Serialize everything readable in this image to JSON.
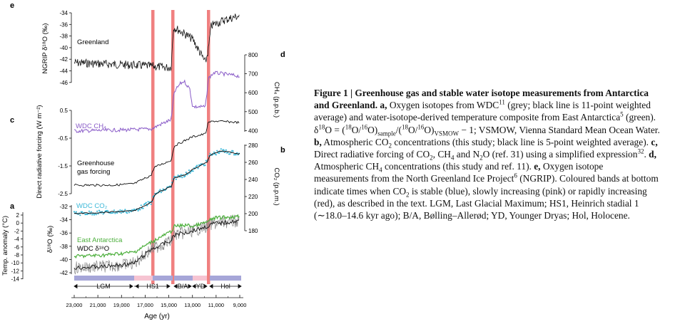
{
  "figure": {
    "panel_letters": {
      "a": "a",
      "b": "b",
      "c": "c",
      "d": "d",
      "e": "e"
    },
    "e_ticks": [
      "-34",
      "-36",
      "-38",
      "-40",
      "-42",
      "-44",
      "-46"
    ],
    "e_axis_label": "NGRIP δ¹⁸O (‰)",
    "greenland_label": "Greenland",
    "d_ticks": [
      "800",
      "700",
      "600",
      "500",
      "400"
    ],
    "d_axis_label": "CH₄ (p.p.b.)",
    "c_ticks": [
      "0.5",
      "-0.5",
      "-1.5",
      "-2.5"
    ],
    "c_axis_label": "Direct radiative forcing (W m⁻²)",
    "wdc_ch4_label": "WDC CH₄",
    "ghg_label_1": "Greenhouse",
    "ghg_label_2": "gas forcing",
    "b_ticks": [
      "280",
      "260",
      "240",
      "220",
      "200",
      "180"
    ],
    "b_axis_label": "CO₂ (p.p.m.)",
    "wdc_co2_label": "WDC CO₂",
    "a_left_ticks": [
      "2",
      "0",
      "-2",
      "-4",
      "-6",
      "-8",
      "-10",
      "-12",
      "-14"
    ],
    "a_left_label": "Temp. anomaly (°C)",
    "a_right_ticks": [
      "-32",
      "-34",
      "-36",
      "-38",
      "-40",
      "-42"
    ],
    "a_right_label": "δ¹⁸O (‰)",
    "east_antarctica_label": "East Antarctica",
    "wdc_d18o_label": "WDC δ¹⁸O",
    "periods": [
      "LGM",
      "HS1",
      "B/A",
      "YD",
      "Hol"
    ],
    "x_ticks": [
      "23,000",
      "21,000",
      "19,000",
      "17,000",
      "15,000",
      "13,000",
      "11,000",
      "9,000"
    ],
    "x_label": "Age (yr)",
    "colors": {
      "red_band": "#f08080",
      "blue_band": "#a6a6d8",
      "pink_band": "#f6c4d2",
      "ch4": "#8a5cc8",
      "co2_points": "#3cb8d8",
      "east_antarctica": "#4caf3c",
      "wdc_grey": "#888888",
      "black": "#111111"
    }
  },
  "caption": {
    "title_bold": "Figure 1 | Greenhouse gas and stable water isotope measurements from Antarctica and Greenland.",
    "a_bold": "a,",
    "a_text": "Oxygen isotopes from WDC",
    "a_ref": "11",
    "a_text2": "(grey; black line is 11-point weighted average) and water-isotope-derived temperature composite from East Antarctica",
    "a_ref2": "5",
    "a_text3": "(green). δ",
    "a_sup18": "18",
    "a_text4": "O = (",
    "a_sup18b": "18",
    "a_text5": "O/",
    "a_sup16": "16",
    "a_text6": "O)",
    "a_sub_sample": "sample",
    "a_text7": "/(",
    "a_sup18c": "18",
    "a_text8": "O/",
    "a_sup16b": "16",
    "a_text9": "O)",
    "a_sub_vsmow": "VSMOW",
    "a_text10": " − 1; VSMOW, Vienna Standard Mean Ocean Water.",
    "b_bold": "b,",
    "b_text": "Atmospheric CO",
    "b_sub2": "2",
    "b_text2": "concentrations (this study; black line is 5-point weighted average).",
    "c_bold": "c,",
    "c_text": "Direct radiative forcing of CO",
    "c_sub2": "2",
    "c_text2": ", CH",
    "c_sub4": "4",
    "c_text3": " and N",
    "c_sub2b": "2",
    "c_text4": "O (ref. 31) using a simplified expression",
    "c_ref": "32",
    "c_text5": ".",
    "d_bold": "d,",
    "d_text": "Atmospheric CH",
    "d_sub4": "4",
    "d_text2": "concentrations (this study and ref. 11).",
    "e_bold": "e,",
    "e_text": "Oxygen isotope measurements from the North Greenland Ice Project",
    "e_ref": "6",
    "e_text2": "(NGRIP). Coloured bands at bottom indicate times when CO",
    "e_sub2": "2",
    "e_text3": "is stable (blue), slowly increasing (pink) or rapidly increasing (red), as described in the text. LGM, Last Glacial Maximum; HS1, Heinrich stadial 1 (∼18.0–14.6 kyr ago); B/A, Bølling–Allerød; YD, Younger Dryas; Hol, Holocene."
  }
}
